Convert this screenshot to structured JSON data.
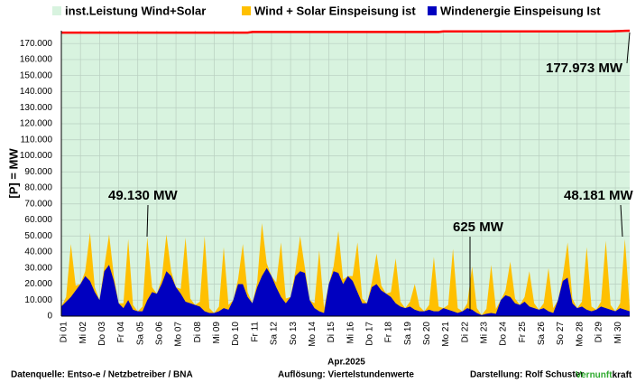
{
  "chart_data": {
    "type": "area",
    "y_label": "[P] =  MW",
    "x_label": "Apr.2025",
    "categories": [
      "Di 01",
      null,
      null,
      null,
      "Mi 02",
      null,
      null,
      null,
      "Do 03",
      null,
      null,
      null,
      "Fr 04",
      null,
      null,
      null,
      "Sa 05",
      null,
      null,
      null,
      "So 06",
      null,
      null,
      null,
      "Mo 07",
      null,
      null,
      null,
      "Di 08",
      null,
      null,
      null,
      "Mi 09",
      null,
      null,
      null,
      "Do 10",
      null,
      null,
      null,
      "Fr 11",
      null,
      null,
      null,
      "Sa 12",
      null,
      null,
      null,
      "So 13",
      null,
      null,
      null,
      "Mo 14",
      null,
      null,
      null,
      "Di 15",
      null,
      null,
      null,
      "Mi 16",
      null,
      null,
      null,
      "Do 17",
      null,
      null,
      null,
      "Fr 18",
      null,
      null,
      null,
      "Sa 19",
      null,
      null,
      null,
      "So 20",
      null,
      null,
      null,
      "Mo 21",
      null,
      null,
      null,
      "Di 22",
      null,
      null,
      null,
      "Mi 23",
      null,
      null,
      null,
      "Do 24",
      null,
      null,
      null,
      "Fr 25",
      null,
      null,
      null,
      "Sa 26",
      null,
      null,
      null,
      "So 27",
      null,
      null,
      null,
      "Mo 28",
      null,
      null,
      null,
      "Di 29",
      null,
      null,
      null,
      "Mi 30",
      null,
      null,
      null
    ],
    "series": [
      {
        "name": "inst.Leistung Wind+Solar",
        "color": "#d8f3df",
        "line_color": "#ff0000",
        "values": [
          176800,
          176800,
          176800,
          176800,
          176800,
          176800,
          176800,
          176800,
          176800,
          176800,
          176800,
          176800,
          176800,
          176800,
          176800,
          176800,
          176800,
          176800,
          176800,
          176800,
          176800,
          176800,
          176800,
          176800,
          176800,
          176800,
          176800,
          176800,
          176800,
          176800,
          176800,
          176800,
          176800,
          176800,
          176800,
          176800,
          176800,
          176800,
          176800,
          176800,
          177200,
          177200,
          177200,
          177200,
          177200,
          177200,
          177200,
          177200,
          177200,
          177200,
          177200,
          177200,
          177200,
          177200,
          177200,
          177200,
          177200,
          177200,
          177200,
          177200,
          177200,
          177200,
          177200,
          177200,
          177200,
          177200,
          177200,
          177200,
          177200,
          177200,
          177200,
          177200,
          177200,
          177200,
          177200,
          177200,
          177200,
          177200,
          177200,
          177200,
          177600,
          177600,
          177600,
          177600,
          177600,
          177600,
          177600,
          177600,
          177600,
          177600,
          177600,
          177600,
          177600,
          177600,
          177600,
          177600,
          177600,
          177600,
          177600,
          177600,
          177600,
          177600,
          177600,
          177600,
          177600,
          177600,
          177600,
          177600,
          177600,
          177600,
          177600,
          177600,
          177600,
          177600,
          177600,
          177600,
          177700,
          177800,
          177900,
          177973
        ]
      },
      {
        "name": "Wind + Solar Einspeisung ist",
        "color": "#ffc000",
        "values": [
          6000,
          12000,
          45000,
          19000,
          20000,
          28000,
          52000,
          18000,
          10000,
          31000,
          51000,
          25000,
          8000,
          8000,
          48000,
          7000,
          3000,
          6000,
          49130,
          18000,
          14000,
          23000,
          51000,
          28000,
          18000,
          17000,
          49000,
          11000,
          7000,
          9000,
          50000,
          5000,
          2000,
          6000,
          43000,
          7000,
          10000,
          23000,
          45000,
          15000,
          8000,
          21000,
          58000,
          33000,
          25000,
          21000,
          46000,
          11000,
          12000,
          28000,
          50000,
          30000,
          10000,
          8000,
          41000,
          5000,
          20000,
          31000,
          53000,
          23000,
          25000,
          25000,
          46000,
          11000,
          8000,
          21000,
          39000,
          19000,
          14000,
          15000,
          36000,
          9000,
          5000,
          9000,
          20000,
          6000,
          3000,
          7000,
          37000,
          6000,
          5000,
          7000,
          42000,
          5000,
          3000,
          8000,
          31000,
          5000,
          625,
          4500,
          32000,
          4500,
          10000,
          16000,
          34000,
          11000,
          7000,
          12000,
          28000,
          8000,
          4000,
          8000,
          30000,
          5000,
          10000,
          25000,
          46000,
          11000,
          5000,
          9000,
          43000,
          6000,
          4000,
          9000,
          47000,
          7000,
          3000,
          8000,
          48181,
          6000
        ]
      },
      {
        "name": "Windenergie Einspeisung Ist",
        "color": "#0000c0",
        "values": [
          6000,
          9000,
          12000,
          16000,
          20000,
          25000,
          22000,
          15000,
          10000,
          28000,
          32000,
          22000,
          8000,
          5000,
          10000,
          4000,
          3000,
          3000,
          10000,
          15000,
          14000,
          20000,
          28000,
          25000,
          18000,
          14000,
          9000,
          8000,
          7000,
          6000,
          3000,
          2000,
          2000,
          3000,
          5000,
          4000,
          10000,
          20000,
          20000,
          12000,
          8000,
          18000,
          25000,
          30000,
          25000,
          18000,
          12000,
          8000,
          12000,
          25000,
          28000,
          27000,
          10000,
          5000,
          3000,
          2000,
          20000,
          28000,
          27000,
          20000,
          25000,
          22000,
          15000,
          8000,
          8000,
          18000,
          20000,
          16000,
          14000,
          12000,
          8000,
          6000,
          5000,
          6000,
          4000,
          3000,
          3000,
          4000,
          3000,
          3000,
          5000,
          4000,
          3000,
          2000,
          3000,
          5000,
          4000,
          2000,
          625,
          1500,
          2000,
          1500,
          10000,
          13000,
          12000,
          8000,
          7000,
          9000,
          6000,
          5000,
          4000,
          5000,
          3000,
          2000,
          10000,
          22000,
          24000,
          8000,
          5000,
          6000,
          4000,
          3000,
          4000,
          6000,
          5000,
          4000,
          3000,
          5000,
          4000,
          3000
        ]
      }
    ],
    "ylim": [
      0,
      178000
    ],
    "yticks": [
      0,
      {
        "value": 10000,
        "label": "10.000"
      },
      {
        "value": 20000,
        "label": "20.000"
      },
      {
        "value": 30000,
        "label": "30.000"
      },
      {
        "value": 40000,
        "label": "40.000"
      },
      {
        "value": 50000,
        "label": "50.000"
      },
      {
        "value": 60000,
        "label": "60.000"
      },
      {
        "value": 70000,
        "label": "70.000"
      },
      {
        "value": 80000,
        "label": "80.000"
      },
      {
        "value": 90000,
        "label": "90.000"
      },
      {
        "value": 100000,
        "label": "100.000"
      },
      {
        "value": 110000,
        "label": "110.000"
      },
      {
        "value": 120000,
        "label": "120.000"
      },
      {
        "value": 130000,
        "label": "130.000"
      },
      {
        "value": 140000,
        "label": "140.000"
      },
      {
        "value": 150000,
        "label": "150.000"
      },
      {
        "value": 160000,
        "label": "160.000"
      },
      {
        "value": 170000,
        "label": "170.000"
      }
    ],
    "grid": true,
    "legend": "top",
    "annotations": [
      "177.973 MW",
      "49.130 MW",
      "625 MW",
      "48.181 MW"
    ]
  },
  "footer": {
    "source": "Datenquelle:  Entso-e  / Netzbetreiber / BNA",
    "resolution": "Auflösung: Viertelstundenwerte",
    "credit": "Darstellung:  Rolf Schuster",
    "brand_a": "Vernunft",
    "brand_b": "kraft"
  }
}
